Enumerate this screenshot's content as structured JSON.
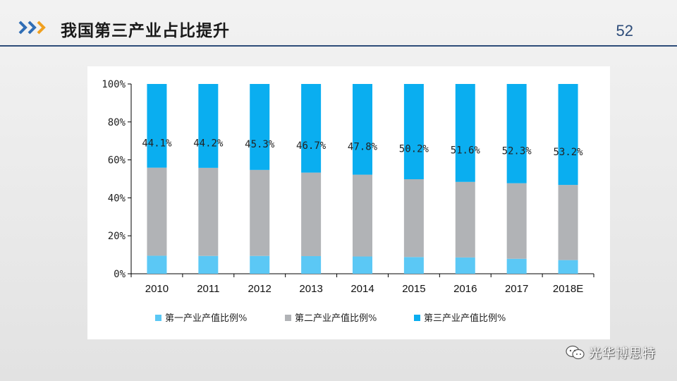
{
  "header": {
    "title": "我国第三产业占比提升",
    "page_number": "52"
  },
  "colors": {
    "accent": "#2e4d7a",
    "chevron_blue": "#2f6db5",
    "chevron_orange": "#f0a020",
    "primary": "#5bc8f5",
    "secondary": "#b1b3b6",
    "tertiary": "#0aaef0"
  },
  "chart_data": {
    "type": "bar",
    "stacked": true,
    "categories": [
      "2010",
      "2011",
      "2012",
      "2013",
      "2014",
      "2015",
      "2016",
      "2017",
      "2018E"
    ],
    "series": [
      {
        "name": "第一产业产值比例%",
        "values": [
          9.5,
          9.4,
          9.4,
          9.3,
          9.1,
          8.8,
          8.6,
          7.9,
          7.2
        ],
        "color": "#5bc8f5"
      },
      {
        "name": "第二产业产值比例%",
        "values": [
          46.4,
          46.4,
          45.3,
          44.0,
          43.1,
          41.0,
          39.8,
          39.8,
          39.6
        ],
        "color": "#b1b3b6"
      },
      {
        "name": "第三产业产值比例%",
        "values": [
          44.1,
          44.2,
          45.3,
          46.7,
          47.8,
          50.2,
          51.6,
          52.3,
          53.2
        ],
        "color": "#0aaef0"
      }
    ],
    "data_labels": [
      "44.1%",
      "44.2%",
      "45.3%",
      "46.7%",
      "47.8%",
      "50.2%",
      "51.6%",
      "52.3%",
      "53.2%"
    ],
    "yticks": [
      "0%",
      "20%",
      "40%",
      "60%",
      "80%",
      "100%"
    ],
    "ylim": [
      0,
      100
    ],
    "legend_position": "bottom",
    "grid": false,
    "title": "",
    "xlabel": "",
    "ylabel": ""
  },
  "watermark": {
    "text": "光华博思特",
    "icon": "wechat-icon"
  }
}
